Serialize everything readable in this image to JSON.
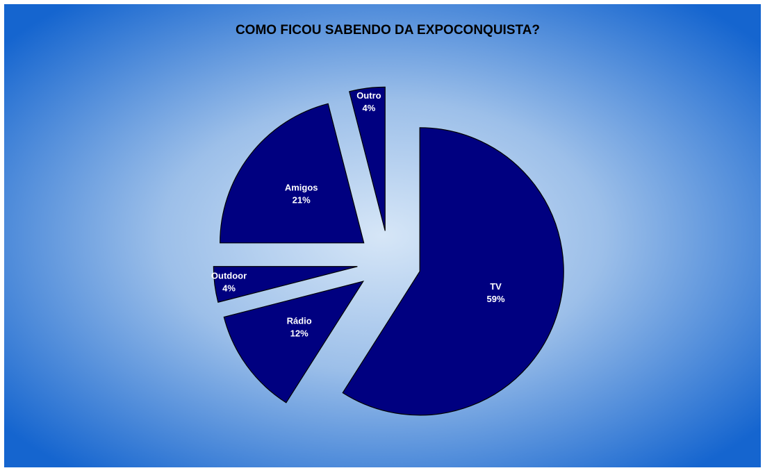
{
  "chart_data": {
    "type": "pie",
    "title": "COMO FICOU SABENDO DA EXPOCONQUISTA?",
    "categories": [
      "TV",
      "Rádio",
      "Outdoor",
      "Amigos",
      "Outro"
    ],
    "values": [
      59,
      12,
      4,
      21,
      4
    ],
    "value_labels": [
      "59%",
      "12%",
      "4%",
      "21%",
      "4%"
    ],
    "color": "#000080"
  }
}
